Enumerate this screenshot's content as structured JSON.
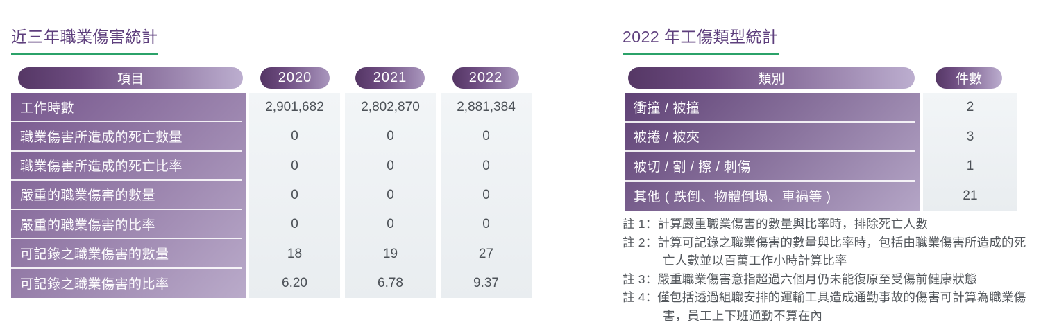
{
  "left_table": {
    "title": "近三年職業傷害統計",
    "header": {
      "item_label": "項目",
      "years": {
        "y2020": "2020",
        "y2021": "2021",
        "y2022": "2022"
      }
    },
    "rows": [
      {
        "label": "工作時數",
        "values": [
          "2,901,682",
          "2,802,870",
          "2,881,384"
        ]
      },
      {
        "label": "職業傷害所造成的死亡數量",
        "values": [
          "0",
          "0",
          "0"
        ]
      },
      {
        "label": "職業傷害所造成的死亡比率",
        "values": [
          "0",
          "0",
          "0"
        ]
      },
      {
        "label": "嚴重的職業傷害的數量",
        "values": [
          "0",
          "0",
          "0"
        ]
      },
      {
        "label": "嚴重的職業傷害的比率",
        "values": [
          "0",
          "0",
          "0"
        ]
      },
      {
        "label": "可記錄之職業傷害的數量",
        "values": [
          "18",
          "19",
          "27"
        ]
      },
      {
        "label": "可記錄之職業傷害的比率",
        "values": [
          "6.20",
          "6.78",
          "9.37"
        ]
      }
    ]
  },
  "right_table": {
    "title": "2022 年工傷類型統計",
    "header": {
      "category_label": "類別",
      "count_label": "件數"
    },
    "rows": [
      {
        "label": "衝撞 / 被撞",
        "count": "2"
      },
      {
        "label": "被捲 / 被夾",
        "count": "3"
      },
      {
        "label": "被切 / 割 / 擦 / 刺傷",
        "count": "1"
      },
      {
        "label": "其他 ( 跌倒、物體倒塌、車禍等 )",
        "count": "21"
      }
    ]
  },
  "notes": [
    "註 1：計算嚴重職業傷害的數量與比率時，排除死亡人數",
    "註 2：計算可記錄之職業傷害的數量與比率時，包括由職業傷害所造成的死亡人數並以百萬工作小時計算比率",
    "註 3：嚴重職業傷害意指超過六個月仍未能復原至受傷前健康狀態",
    "註 4：僅包括透過組職安排的運輸工具造成通勤事故的傷害可計算為職業傷害，員工上下班通勤不算在內"
  ],
  "colors": {
    "title_purple": "#5e3f7d",
    "underline_green": "#2ba269",
    "pill_gradient_dark": "#553765",
    "pill_gradient_light": "#bcaecf",
    "label_column_dark": "#5f4175",
    "label_column_light": "#baabca",
    "data_column_bg": "#edf1f3",
    "data_text": "#4c5157",
    "note_text": "#54585d"
  }
}
